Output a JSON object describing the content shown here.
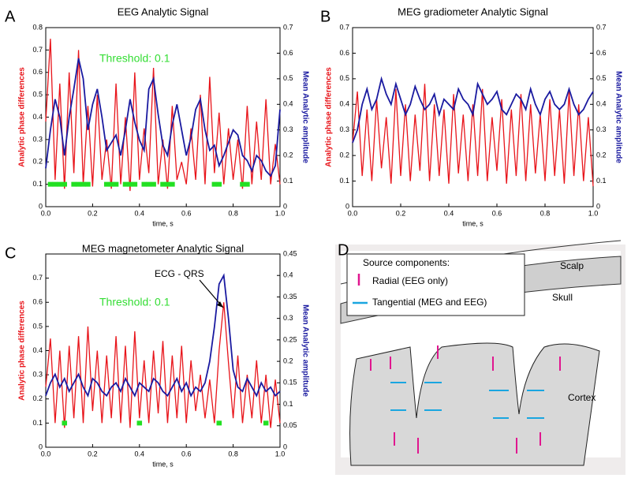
{
  "chart_data": [
    {
      "type": "line",
      "panel": "A",
      "title": "EEG Analytic Signal",
      "xlabel": "time, s",
      "ylabel": "Analytic phase differences",
      "y2label": "Mean Analytic amplitude",
      "annotation": "Threshold: 0.1",
      "xlim": [
        0,
        1
      ],
      "xticks": [
        {
          "value": 0,
          "label": "0.0"
        },
        0.2,
        0.4,
        0.6,
        0.8,
        {
          "value": 1,
          "label": "1.0"
        }
      ],
      "ylim": [
        0,
        0.8
      ],
      "yticks": [
        0,
        0.1,
        0.2,
        0.3,
        0.4,
        0.5,
        0.6,
        0.7,
        0.8
      ],
      "y2lim": [
        0,
        0.7
      ],
      "y2ticks": [
        0,
        0.1,
        0.2,
        0.3,
        0.4,
        0.5,
        0.6,
        0.7
      ],
      "x": [
        0,
        0.02,
        0.04,
        0.06,
        0.08,
        0.1,
        0.12,
        0.14,
        0.16,
        0.18,
        0.2,
        0.22,
        0.24,
        0.26,
        0.28,
        0.3,
        0.32,
        0.34,
        0.36,
        0.38,
        0.4,
        0.42,
        0.44,
        0.46,
        0.48,
        0.5,
        0.52,
        0.54,
        0.56,
        0.58,
        0.6,
        0.62,
        0.64,
        0.66,
        0.68,
        0.7,
        0.72,
        0.74,
        0.76,
        0.78,
        0.8,
        0.82,
        0.84,
        0.86,
        0.88,
        0.9,
        0.92,
        0.94,
        0.96,
        0.98,
        1
      ],
      "series": [
        {
          "color": "#e8141a",
          "values": [
            0.38,
            0.75,
            0.12,
            0.55,
            0.08,
            0.6,
            0.15,
            0.7,
            0.1,
            0.45,
            0.09,
            0.5,
            0.12,
            0.3,
            0.08,
            0.55,
            0.1,
            0.4,
            0.07,
            0.6,
            0.12,
            0.35,
            0.15,
            0.62,
            0.1,
            0.3,
            0.08,
            0.45,
            0.12,
            0.2,
            0.1,
            0.35,
            0.12,
            0.5,
            0.1,
            0.58,
            0.15,
            0.42,
            0.1,
            0.35,
            0.12,
            0.3,
            0.08,
            0.45,
            0.1,
            0.38,
            0.12,
            0.48,
            0.1,
            0.28,
            0.1
          ]
        },
        {
          "color": "#1a1aa0",
          "axis": "y2",
          "values": [
            0.15,
            0.3,
            0.42,
            0.35,
            0.2,
            0.35,
            0.46,
            0.58,
            0.5,
            0.3,
            0.4,
            0.46,
            0.35,
            0.22,
            0.25,
            0.28,
            0.2,
            0.3,
            0.42,
            0.33,
            0.26,
            0.22,
            0.46,
            0.5,
            0.36,
            0.24,
            0.2,
            0.32,
            0.4,
            0.3,
            0.2,
            0.27,
            0.38,
            0.42,
            0.3,
            0.22,
            0.24,
            0.16,
            0.2,
            0.25,
            0.3,
            0.28,
            0.2,
            0.18,
            0.14,
            0.2,
            0.18,
            0.14,
            0.12,
            0.16,
            0.38
          ]
        },
        {
          "color": "#22e022",
          "marker": "square",
          "values": [
            null,
            0.1,
            0.1,
            0.1,
            0.1,
            null,
            0.1,
            0.1,
            0.1,
            0.1,
            null,
            null,
            null,
            0.1,
            0.1,
            0.1,
            null,
            0.1,
            0.1,
            0.1,
            null,
            0.1,
            0.1,
            0.1,
            null,
            0.1,
            0.1,
            0.1,
            null,
            null,
            null,
            null,
            null,
            null,
            null,
            null,
            0.1,
            0.1,
            null,
            null,
            null,
            null,
            0.1,
            0.1,
            null,
            null,
            null,
            null,
            null,
            null,
            null
          ]
        }
      ]
    },
    {
      "type": "line",
      "panel": "B",
      "title": "MEG gradiometer Analytic Signal",
      "xlabel": "time, s",
      "ylabel": "Analytic phase differences",
      "y2label": "Mean Analytic amplitude",
      "xlim": [
        0,
        1
      ],
      "xticks": [
        {
          "value": 0,
          "label": "0.0"
        },
        0.2,
        0.4,
        0.6,
        0.8,
        {
          "value": 1,
          "label": "1.0"
        }
      ],
      "ylim": [
        0,
        0.7
      ],
      "yticks": [
        0,
        0.1,
        0.2,
        0.3,
        0.4,
        0.5,
        0.6,
        0.7
      ],
      "y2lim": [
        0,
        0.7
      ],
      "y2ticks": [
        0,
        0.1,
        0.2,
        0.3,
        0.4,
        0.5,
        0.6,
        0.7
      ],
      "x": [
        0,
        0.02,
        0.04,
        0.06,
        0.08,
        0.1,
        0.12,
        0.14,
        0.16,
        0.18,
        0.2,
        0.22,
        0.24,
        0.26,
        0.28,
        0.3,
        0.32,
        0.34,
        0.36,
        0.38,
        0.4,
        0.42,
        0.44,
        0.46,
        0.48,
        0.5,
        0.52,
        0.54,
        0.56,
        0.58,
        0.6,
        0.62,
        0.64,
        0.66,
        0.68,
        0.7,
        0.72,
        0.74,
        0.76,
        0.78,
        0.8,
        0.82,
        0.84,
        0.86,
        0.88,
        0.9,
        0.92,
        0.94,
        0.96,
        0.98,
        1
      ],
      "series": [
        {
          "color": "#e8141a",
          "values": [
            0.25,
            0.45,
            0.12,
            0.38,
            0.1,
            0.42,
            0.15,
            0.35,
            0.09,
            0.46,
            0.12,
            0.4,
            0.1,
            0.36,
            0.14,
            0.48,
            0.1,
            0.4,
            0.12,
            0.38,
            0.09,
            0.44,
            0.13,
            0.36,
            0.1,
            0.4,
            0.12,
            0.46,
            0.1,
            0.35,
            0.14,
            0.42,
            0.09,
            0.38,
            0.12,
            0.44,
            0.1,
            0.4,
            0.13,
            0.36,
            0.1,
            0.42,
            0.12,
            0.38,
            0.09,
            0.45,
            0.12,
            0.4,
            0.1,
            0.35,
            0.08
          ]
        },
        {
          "color": "#1a1aa0",
          "axis": "y2",
          "values": [
            0.25,
            0.3,
            0.4,
            0.46,
            0.38,
            0.42,
            0.5,
            0.44,
            0.4,
            0.48,
            0.42,
            0.36,
            0.4,
            0.47,
            0.42,
            0.38,
            0.4,
            0.44,
            0.36,
            0.42,
            0.4,
            0.38,
            0.46,
            0.42,
            0.4,
            0.36,
            0.48,
            0.44,
            0.4,
            0.42,
            0.45,
            0.38,
            0.36,
            0.4,
            0.44,
            0.42,
            0.38,
            0.46,
            0.4,
            0.36,
            0.42,
            0.45,
            0.4,
            0.38,
            0.4,
            0.46,
            0.4,
            0.36,
            0.38,
            0.42,
            0.45
          ]
        }
      ]
    },
    {
      "type": "line",
      "panel": "C",
      "title": "MEG magnetometer Analytic Signal",
      "xlabel": "time, s",
      "ylabel": "Analytic phase differences",
      "y2label": "Mean Analytic amplitude",
      "annotation": "Threshold: 0.1",
      "callout": "ECG - QRS",
      "xlim": [
        0,
        1
      ],
      "xticks": [
        {
          "value": 0,
          "label": "0.0"
        },
        0.2,
        0.4,
        0.6,
        0.8,
        {
          "value": 1,
          "label": "1.0"
        }
      ],
      "ylim": [
        0,
        0.8
      ],
      "yticks": [
        0,
        0.1,
        0.2,
        0.3,
        0.4,
        0.5,
        0.6,
        0.7
      ],
      "y2lim": [
        0,
        0.45
      ],
      "y2ticks": [
        0,
        0.05,
        0.1,
        0.15,
        0.2,
        0.25,
        0.3,
        0.35,
        0.4,
        0.45
      ],
      "x": [
        0,
        0.02,
        0.04,
        0.06,
        0.08,
        0.1,
        0.12,
        0.14,
        0.16,
        0.18,
        0.2,
        0.22,
        0.24,
        0.26,
        0.28,
        0.3,
        0.32,
        0.34,
        0.36,
        0.38,
        0.4,
        0.42,
        0.44,
        0.46,
        0.48,
        0.5,
        0.52,
        0.54,
        0.56,
        0.58,
        0.6,
        0.62,
        0.64,
        0.66,
        0.68,
        0.7,
        0.72,
        0.74,
        0.76,
        0.78,
        0.8,
        0.82,
        0.84,
        0.86,
        0.88,
        0.9,
        0.92,
        0.94,
        0.96,
        0.98,
        1
      ],
      "series": [
        {
          "color": "#e8141a",
          "values": [
            0.25,
            0.45,
            0.1,
            0.4,
            0.08,
            0.42,
            0.12,
            0.46,
            0.1,
            0.5,
            0.15,
            0.4,
            0.1,
            0.38,
            0.12,
            0.46,
            0.1,
            0.42,
            0.08,
            0.48,
            0.12,
            0.36,
            0.1,
            0.4,
            0.14,
            0.44,
            0.1,
            0.38,
            0.12,
            0.42,
            0.1,
            0.36,
            0.15,
            0.3,
            0.12,
            0.28,
            0.1,
            0.4,
            0.6,
            0.35,
            0.12,
            0.38,
            0.1,
            0.3,
            0.12,
            0.36,
            0.1,
            0.3,
            0.08,
            0.28,
            0.1
          ]
        },
        {
          "color": "#1a1aa0",
          "axis": "y2",
          "values": [
            0.12,
            0.15,
            0.17,
            0.14,
            0.16,
            0.13,
            0.15,
            0.17,
            0.14,
            0.12,
            0.16,
            0.15,
            0.13,
            0.12,
            0.14,
            0.15,
            0.13,
            0.16,
            0.14,
            0.12,
            0.15,
            0.14,
            0.13,
            0.16,
            0.15,
            0.13,
            0.12,
            0.14,
            0.16,
            0.13,
            0.15,
            0.12,
            0.14,
            0.13,
            0.15,
            0.2,
            0.28,
            0.38,
            0.4,
            0.3,
            0.18,
            0.14,
            0.13,
            0.16,
            0.14,
            0.12,
            0.15,
            0.13,
            0.14,
            0.12,
            0.13
          ]
        },
        {
          "color": "#22e022",
          "marker": "square",
          "values": [
            null,
            null,
            null,
            null,
            0.1,
            null,
            null,
            null,
            null,
            null,
            null,
            null,
            null,
            null,
            null,
            null,
            null,
            null,
            null,
            null,
            0.1,
            null,
            null,
            null,
            null,
            null,
            null,
            null,
            null,
            null,
            null,
            null,
            null,
            null,
            null,
            null,
            null,
            0.1,
            null,
            null,
            null,
            null,
            null,
            null,
            null,
            null,
            null,
            0.1,
            null,
            null,
            null
          ]
        }
      ]
    }
  ],
  "diagram": {
    "panel": "D",
    "legend_title": "Source components:",
    "radial": "Radial (EEG only)",
    "tangential": "Tangential (MEG and EEG)",
    "scalp": "Scalp",
    "skull": "Skull",
    "cortex": "Cortex"
  }
}
